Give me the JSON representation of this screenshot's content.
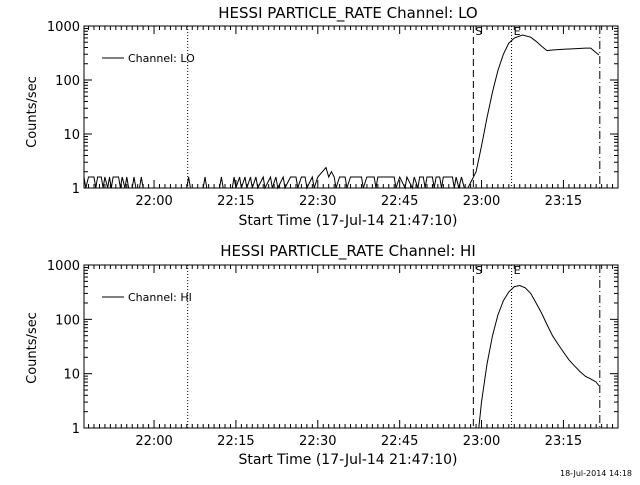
{
  "chart_data": [
    {
      "type": "line",
      "title": "HESSI PARTICLE_RATE Channel: LO",
      "xlabel": "Start Time (17-Jul-14 21:47:10)",
      "ylabel": "Counts/sec",
      "yscale": "log",
      "ylim": [
        1,
        1000
      ],
      "xlim": [
        "21:47:10",
        "23:25:00"
      ],
      "x_ticks": [
        "22:00",
        "22:15",
        "22:30",
        "22:45",
        "23:00",
        "23:15"
      ],
      "y_ticks": [
        "1",
        "10",
        "100",
        "1000"
      ],
      "legend_position": "top-left",
      "series": [
        {
          "name": "Channel: LO",
          "points": [
            [
              "21:47:10",
              1.6
            ],
            [
              "21:47:30",
              1.0
            ],
            [
              "21:48:00",
              1.6
            ],
            [
              "21:49:00",
              1.6
            ],
            [
              "21:49:20",
              1.0
            ],
            [
              "21:49:40",
              1.6
            ],
            [
              "21:50:20",
              1.6
            ],
            [
              "21:50:40",
              1.0
            ],
            [
              "21:51:00",
              1.6
            ],
            [
              "21:51:30",
              1.0
            ],
            [
              "21:51:50",
              1.6
            ],
            [
              "21:52:10",
              1.0
            ],
            [
              "21:52:30",
              1.6
            ],
            [
              "21:53:30",
              1.6
            ],
            [
              "21:53:50",
              1.0
            ],
            [
              "21:54:10",
              1.6
            ],
            [
              "21:54:40",
              1.0
            ],
            [
              "21:55:00",
              1.6
            ],
            [
              "21:55:20",
              1.0
            ],
            [
              "21:56:00",
              1.0
            ],
            [
              "21:56:20",
              1.6
            ],
            [
              "21:56:40",
              1.0
            ],
            [
              "21:57:20",
              1.0
            ],
            [
              "21:57:40",
              1.6
            ],
            [
              "21:58:00",
              1.0
            ],
            [
              "22:06:00",
              1.0
            ],
            [
              "22:06:20",
              1.6
            ],
            [
              "22:06:40",
              1.0
            ],
            [
              "22:09:00",
              1.0
            ],
            [
              "22:09:20",
              1.6
            ],
            [
              "22:09:40",
              1.0
            ],
            [
              "22:12:00",
              1.0
            ],
            [
              "22:12:20",
              1.6
            ],
            [
              "22:12:40",
              1.0
            ],
            [
              "22:14:20",
              1.0
            ],
            [
              "22:14:40",
              1.6
            ],
            [
              "22:15:00",
              1.0
            ],
            [
              "22:15:40",
              1.6
            ],
            [
              "22:16:00",
              1.0
            ],
            [
              "22:16:40",
              1.6
            ],
            [
              "22:17:00",
              1.0
            ],
            [
              "22:17:40",
              1.6
            ],
            [
              "22:18:00",
              1.0
            ],
            [
              "22:18:40",
              1.6
            ],
            [
              "22:19:00",
              1.0
            ],
            [
              "22:20:00",
              1.6
            ],
            [
              "22:20:20",
              1.0
            ],
            [
              "22:21:20",
              1.6
            ],
            [
              "22:21:40",
              1.0
            ],
            [
              "22:22:20",
              1.6
            ],
            [
              "22:22:40",
              1.0
            ],
            [
              "22:23:40",
              1.6
            ],
            [
              "22:24:00",
              1.0
            ],
            [
              "22:25:00",
              1.6
            ],
            [
              "22:26:00",
              1.6
            ],
            [
              "22:26:20",
              1.0
            ],
            [
              "22:27:00",
              1.6
            ],
            [
              "22:27:40",
              1.6
            ],
            [
              "22:28:00",
              1.0
            ],
            [
              "22:29:00",
              1.6
            ],
            [
              "22:29:20",
              1.0
            ],
            [
              "22:30:00",
              1.6
            ],
            [
              "22:31:30",
              2.4
            ],
            [
              "22:32:00",
              1.6
            ],
            [
              "22:32:30",
              2.0
            ],
            [
              "22:33:00",
              1.6
            ],
            [
              "22:33:20",
              1.0
            ],
            [
              "22:34:00",
              1.6
            ],
            [
              "22:35:00",
              1.6
            ],
            [
              "22:35:20",
              1.0
            ],
            [
              "22:36:00",
              1.6
            ],
            [
              "22:38:00",
              1.6
            ],
            [
              "22:38:20",
              1.0
            ],
            [
              "22:39:00",
              1.6
            ],
            [
              "22:40:20",
              1.6
            ],
            [
              "22:40:40",
              1.0
            ],
            [
              "22:41:00",
              1.6
            ],
            [
              "22:44:00",
              1.6
            ],
            [
              "22:44:20",
              1.0
            ],
            [
              "22:45:00",
              1.6
            ],
            [
              "22:46:00",
              1.0
            ],
            [
              "22:46:20",
              1.6
            ],
            [
              "22:47:20",
              1.0
            ],
            [
              "22:47:40",
              1.6
            ],
            [
              "22:48:20",
              1.0
            ],
            [
              "22:48:40",
              1.6
            ],
            [
              "22:49:20",
              1.6
            ],
            [
              "22:49:40",
              1.0
            ],
            [
              "22:50:00",
              1.6
            ],
            [
              "22:51:00",
              1.6
            ],
            [
              "22:51:20",
              1.0
            ],
            [
              "22:51:40",
              1.6
            ],
            [
              "22:52:20",
              1.6
            ],
            [
              "22:52:40",
              1.0
            ],
            [
              "22:53:00",
              1.6
            ],
            [
              "22:54:40",
              1.6
            ],
            [
              "22:55:00",
              1.0
            ],
            [
              "22:55:20",
              1.6
            ],
            [
              "22:55:50",
              1.0
            ],
            [
              "22:56:20",
              1.6
            ],
            [
              "22:56:50",
              1.0
            ],
            [
              "22:57:30",
              1.0
            ],
            [
              "22:59:00",
              2.0
            ],
            [
              "23:00:00",
              6.0
            ],
            [
              "23:01:00",
              20
            ],
            [
              "23:02:00",
              60
            ],
            [
              "23:03:00",
              150
            ],
            [
              "23:04:00",
              300
            ],
            [
              "23:05:00",
              480
            ],
            [
              "23:06:00",
              600
            ],
            [
              "23:07:30",
              680
            ],
            [
              "23:09:00",
              620
            ],
            [
              "23:10:00",
              520
            ],
            [
              "23:11:00",
              420
            ],
            [
              "23:12:00",
              350
            ],
            [
              "23:13:00",
              360
            ],
            [
              "23:15:00",
              370
            ],
            [
              "23:17:00",
              380
            ],
            [
              "23:19:00",
              390
            ],
            [
              "23:20:00",
              390
            ],
            [
              "23:21:00",
              320
            ],
            [
              "23:21:30",
              290
            ]
          ]
        }
      ]
    },
    {
      "type": "line",
      "title": "HESSI PARTICLE_RATE Channel: HI",
      "xlabel": "Start Time (17-Jul-14 21:47:10)",
      "ylabel": "Counts/sec",
      "yscale": "log",
      "ylim": [
        1,
        1000
      ],
      "xlim": [
        "21:47:10",
        "23:25:00"
      ],
      "x_ticks": [
        "22:00",
        "22:15",
        "22:30",
        "22:45",
        "23:00",
        "23:15"
      ],
      "y_ticks": [
        "1",
        "10",
        "100",
        "1000"
      ],
      "legend_position": "top-left",
      "series": [
        {
          "name": "Channel: HI",
          "points": [
            [
              "22:59:30",
              1.0
            ],
            [
              "23:00:00",
              3
            ],
            [
              "23:01:00",
              15
            ],
            [
              "23:02:00",
              50
            ],
            [
              "23:03:00",
              120
            ],
            [
              "23:04:00",
              220
            ],
            [
              "23:05:00",
              320
            ],
            [
              "23:06:00",
              400
            ],
            [
              "23:07:00",
              420
            ],
            [
              "23:08:00",
              380
            ],
            [
              "23:09:00",
              300
            ],
            [
              "23:10:00",
              200
            ],
            [
              "23:11:00",
              130
            ],
            [
              "23:12:00",
              80
            ],
            [
              "23:13:00",
              50
            ],
            [
              "23:14:00",
              35
            ],
            [
              "23:15:00",
              25
            ],
            [
              "23:16:00",
              18
            ],
            [
              "23:17:00",
              14
            ],
            [
              "23:18:00",
              11
            ],
            [
              "23:19:00",
              9
            ],
            [
              "23:20:00",
              8
            ],
            [
              "23:21:00",
              7
            ],
            [
              "23:21:30",
              6
            ]
          ]
        }
      ]
    }
  ],
  "markers": {
    "start_label": "S",
    "end_label": "E",
    "dotted_line_time": "22:06:10",
    "start_line_time": "22:58:30",
    "end_line_time": "23:05:30",
    "dashdot_line_time": "23:21:40"
  },
  "footer": {
    "date_stamp": "18-Jul-2014 14:18"
  }
}
